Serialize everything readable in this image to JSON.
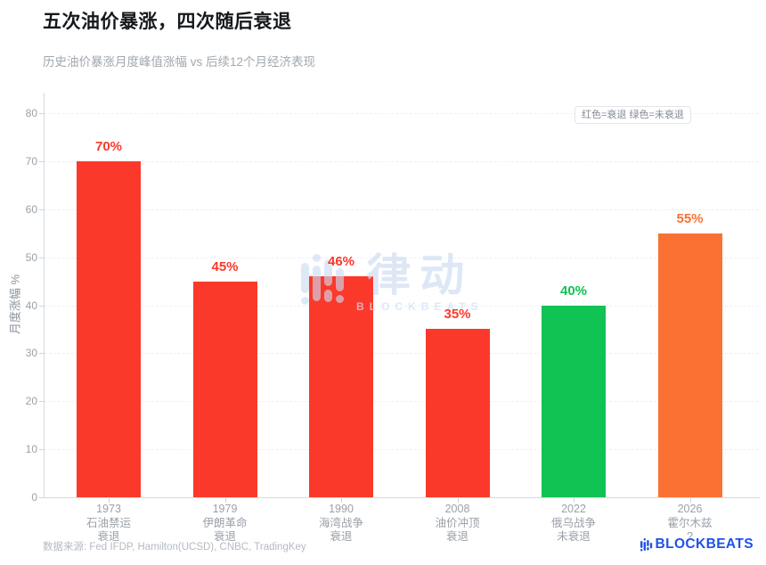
{
  "header": {
    "title": "五次油价暴涨，四次随后衰退",
    "subtitle": "历史油价暴涨月度峰值涨幅 vs 后续12个月经济表现"
  },
  "legend": {
    "note": "红色=衰退 绿色=未衰退"
  },
  "chart_data": {
    "type": "bar",
    "title": "五次油价暴涨，四次随后衰退",
    "subtitle": "历史油价暴涨月度峰值涨幅 vs 后续12个月经济表现",
    "xlabel": "",
    "ylabel": "月度涨幅 %",
    "ylim": [
      0,
      80
    ],
    "yticks": [
      0,
      10,
      20,
      30,
      40,
      50,
      60,
      70,
      80
    ],
    "grid": "horizontal-dashed",
    "legend_position": "top-right",
    "legend_note": "红色=衰退 绿色=未衰退",
    "categories": [
      "1973 石油禁运 衰退",
      "1979 伊朗革命 衰退",
      "1990 海湾战争 衰退",
      "2008 油价冲顶 衰退",
      "2022 俄乌战争 未衰退",
      "2026 霍尔木兹 ?"
    ],
    "values": [
      70,
      45,
      46,
      35,
      40,
      55
    ],
    "bars": [
      {
        "year": "1973",
        "event": "石油禁运",
        "outcome": "衰退",
        "value": 70,
        "label": "70%",
        "color": "#fa392b"
      },
      {
        "year": "1979",
        "event": "伊朗革命",
        "outcome": "衰退",
        "value": 45,
        "label": "45%",
        "color": "#fa392b"
      },
      {
        "year": "1990",
        "event": "海湾战争",
        "outcome": "衰退",
        "value": 46,
        "label": "46%",
        "color": "#fa392b"
      },
      {
        "year": "2008",
        "event": "油价冲顶",
        "outcome": "衰退",
        "value": 35,
        "label": "35%",
        "color": "#fa392b"
      },
      {
        "year": "2022",
        "event": "俄乌战争",
        "outcome": "未衰退",
        "value": 40,
        "label": "40%",
        "color": "#10c353"
      },
      {
        "year": "2026",
        "event": "霍尔木兹",
        "outcome": "?",
        "value": 55,
        "label": "55%",
        "color": "#fb7134"
      }
    ]
  },
  "watermark": {
    "cjk": "律动",
    "latin": "BLOCKBEATS"
  },
  "footer": {
    "source": "数据来源: Fed IFDP, Hamilton(UCSD), CNBC, TradingKey",
    "brand": "BLOCKBEATS"
  },
  "colors": {
    "recession_red": "#fa392b",
    "no_recession_green": "#10c353",
    "pending_orange": "#fb7134",
    "brand_blue": "#1e52e8",
    "axis_gray": "#d6dae0",
    "text_gray": "#9aa1a9",
    "watermark_blue": "#d3dff3"
  }
}
